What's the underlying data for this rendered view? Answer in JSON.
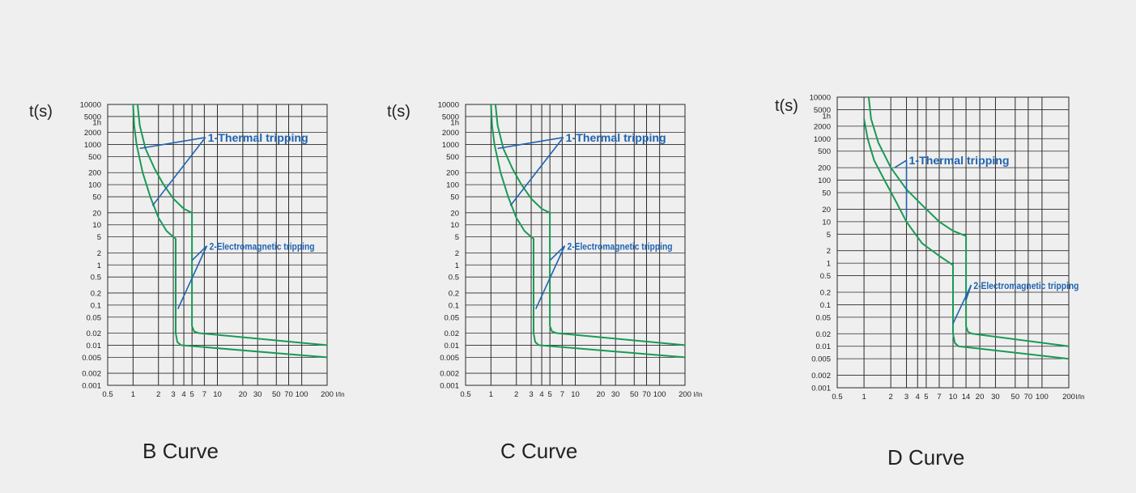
{
  "styles": {
    "background": "#efefef",
    "grid_color": "#2a2a2a",
    "curve_color": "#1a9a55",
    "annotation_color": "#1f63b0",
    "text_color": "#222222"
  },
  "chart_data": [
    {
      "type": "line",
      "title": "B  Curve",
      "ylabel": "t(s)",
      "xlabel": "I/In",
      "x_scale": "log",
      "y_scale": "log",
      "xlim": [
        0.5,
        200
      ],
      "ylim": [
        0.001,
        10000
      ],
      "x_grid": [
        0.5,
        1,
        2,
        3,
        4,
        5,
        7,
        10,
        20,
        30,
        50,
        70,
        100,
        200
      ],
      "x_tick_labels": [
        {
          "label": "0.5",
          "x": 0.5
        },
        {
          "label": "1",
          "x": 1
        },
        {
          "label": "2",
          "x": 2
        },
        {
          "label": "3",
          "x": 3
        },
        {
          "label": "4",
          "x": 4
        },
        {
          "label": "5",
          "x": 5
        },
        {
          "label": "7",
          "x": 7
        },
        {
          "label": "10",
          "x": 10
        },
        {
          "label": "20",
          "x": 20
        },
        {
          "label": "30",
          "x": 30
        },
        {
          "label": "50",
          "x": 50
        },
        {
          "label": "70",
          "x": 70
        },
        {
          "label": "100",
          "x": 100
        },
        {
          "label": "200",
          "x": 200
        }
      ],
      "y_ticks": [
        {
          "label": "10000",
          "y": 10000
        },
        {
          "label": "5000",
          "y": 5000
        },
        {
          "label": "1h",
          "y": 3600
        },
        {
          "label": "2000",
          "y": 2000
        },
        {
          "label": "1000",
          "y": 1000
        },
        {
          "label": "500",
          "y": 500
        },
        {
          "label": "200",
          "y": 200
        },
        {
          "label": "100",
          "y": 100
        },
        {
          "label": "50",
          "y": 50
        },
        {
          "label": "20",
          "y": 20
        },
        {
          "label": "10",
          "y": 10
        },
        {
          "label": "5",
          "y": 5
        },
        {
          "label": "2",
          "y": 2
        },
        {
          "label": "1",
          "y": 1
        },
        {
          "label": "0.5",
          "y": 0.5
        },
        {
          "label": "0.2",
          "y": 0.2
        },
        {
          "label": "0.1",
          "y": 0.1
        },
        {
          "label": "0.05",
          "y": 0.05
        },
        {
          "label": "0.02",
          "y": 0.02
        },
        {
          "label": "0.01",
          "y": 0.01
        },
        {
          "label": "0.005",
          "y": 0.005
        },
        {
          "label": "0.002",
          "y": 0.002
        },
        {
          "label": "0.001",
          "y": 0.001
        }
      ],
      "series": [
        {
          "values": [
            [
              1.0,
              10000
            ],
            [
              1.03,
              3000
            ],
            [
              1.1,
              1000
            ],
            [
              1.3,
              200
            ],
            [
              1.6,
              50
            ],
            [
              2.0,
              15
            ],
            [
              2.5,
              7
            ],
            [
              3.0,
              5
            ],
            [
              3.2,
              4.5
            ],
            [
              3.2,
              0.02
            ],
            [
              3.35,
              0.012
            ],
            [
              3.7,
              0.01
            ],
            [
              200,
              0.005
            ]
          ]
        },
        {
          "values": [
            [
              1.13,
              10000
            ],
            [
              1.2,
              3000
            ],
            [
              1.4,
              800
            ],
            [
              1.8,
              250
            ],
            [
              2.3,
              100
            ],
            [
              3.0,
              45
            ],
            [
              4.0,
              25
            ],
            [
              5.0,
              20
            ],
            [
              5.0,
              0.03
            ],
            [
              5.3,
              0.022
            ],
            [
              6.0,
              0.02
            ],
            [
              200,
              0.01
            ]
          ]
        }
      ],
      "annotations": [
        {
          "text": "1-Thermal tripping",
          "anchor": [
            7.2,
            1500
          ],
          "arrow_targets": [
            [
              1.2,
              800
            ],
            [
              1.7,
              30
            ]
          ]
        },
        {
          "text": "2-Electromagnetic tripping",
          "anchor": [
            7.5,
            3
          ],
          "arrow_targets": [
            [
              5.0,
              1.3
            ],
            [
              3.4,
              0.08
            ]
          ]
        }
      ]
    },
    {
      "type": "line",
      "title": "C  Curve",
      "ylabel": "t(s)",
      "xlabel": "I/In",
      "x_scale": "log",
      "y_scale": "log",
      "xlim": [
        0.5,
        200
      ],
      "ylim": [
        0.001,
        10000
      ],
      "x_grid": [
        0.5,
        1,
        2,
        3,
        4,
        5,
        7,
        10,
        20,
        30,
        50,
        70,
        100,
        200
      ],
      "x_tick_labels": [
        {
          "label": "0.5",
          "x": 0.5
        },
        {
          "label": "1",
          "x": 1
        },
        {
          "label": "2",
          "x": 2
        },
        {
          "label": "3",
          "x": 3
        },
        {
          "label": "4",
          "x": 4
        },
        {
          "label": "5",
          "x": 5
        },
        {
          "label": "7",
          "x": 7
        },
        {
          "label": "10",
          "x": 10
        },
        {
          "label": "20",
          "x": 20
        },
        {
          "label": "30",
          "x": 30
        },
        {
          "label": "50",
          "x": 50
        },
        {
          "label": "70",
          "x": 70
        },
        {
          "label": "100",
          "x": 100
        },
        {
          "label": "200",
          "x": 200
        }
      ],
      "y_ticks": [
        {
          "label": "10000",
          "y": 10000
        },
        {
          "label": "5000",
          "y": 5000
        },
        {
          "label": "1h",
          "y": 3600
        },
        {
          "label": "2000",
          "y": 2000
        },
        {
          "label": "1000",
          "y": 1000
        },
        {
          "label": "500",
          "y": 500
        },
        {
          "label": "200",
          "y": 200
        },
        {
          "label": "100",
          "y": 100
        },
        {
          "label": "50",
          "y": 50
        },
        {
          "label": "20",
          "y": 20
        },
        {
          "label": "10",
          "y": 10
        },
        {
          "label": "5",
          "y": 5
        },
        {
          "label": "2",
          "y": 2
        },
        {
          "label": "1",
          "y": 1
        },
        {
          "label": "0.5",
          "y": 0.5
        },
        {
          "label": "0.2",
          "y": 0.2
        },
        {
          "label": "0.1",
          "y": 0.1
        },
        {
          "label": "0.05",
          "y": 0.05
        },
        {
          "label": "0.02",
          "y": 0.02
        },
        {
          "label": "0.01",
          "y": 0.01
        },
        {
          "label": "0.005",
          "y": 0.005
        },
        {
          "label": "0.002",
          "y": 0.002
        },
        {
          "label": "0.001",
          "y": 0.001
        }
      ],
      "series": [
        {
          "values": [
            [
              1.0,
              10000
            ],
            [
              1.03,
              3000
            ],
            [
              1.1,
              1000
            ],
            [
              1.3,
              200
            ],
            [
              1.6,
              50
            ],
            [
              2.0,
              15
            ],
            [
              2.5,
              7
            ],
            [
              3.0,
              5
            ],
            [
              3.2,
              4.5
            ],
            [
              3.2,
              0.02
            ],
            [
              3.35,
              0.012
            ],
            [
              3.7,
              0.01
            ],
            [
              200,
              0.005
            ]
          ]
        },
        {
          "values": [
            [
              1.13,
              10000
            ],
            [
              1.2,
              3000
            ],
            [
              1.4,
              800
            ],
            [
              1.8,
              250
            ],
            [
              2.3,
              100
            ],
            [
              3.0,
              45
            ],
            [
              4.0,
              25
            ],
            [
              5.0,
              20
            ],
            [
              5.0,
              0.03
            ],
            [
              5.3,
              0.022
            ],
            [
              6.0,
              0.02
            ],
            [
              200,
              0.01
            ]
          ]
        }
      ],
      "annotations": [
        {
          "text": "1-Thermal tripping",
          "anchor": [
            7.2,
            1500
          ],
          "arrow_targets": [
            [
              1.2,
              800
            ],
            [
              1.7,
              30
            ]
          ]
        },
        {
          "text": "2-Electromagnetic tripping",
          "anchor": [
            7.5,
            3
          ],
          "arrow_targets": [
            [
              5.0,
              1.3
            ],
            [
              3.4,
              0.08
            ]
          ]
        }
      ]
    },
    {
      "type": "line",
      "title": "D  Curve",
      "ylabel": "t(s)",
      "xlabel": "I/In",
      "x_scale": "log",
      "y_scale": "log",
      "xlim": [
        0.5,
        200
      ],
      "ylim": [
        0.001,
        10000
      ],
      "x_grid": [
        0.5,
        1,
        2,
        3,
        4,
        5,
        7,
        10,
        14,
        20,
        30,
        50,
        70,
        100,
        200
      ],
      "x_tick_labels": [
        {
          "label": "0.5",
          "x": 0.5
        },
        {
          "label": "1",
          "x": 1
        },
        {
          "label": "2",
          "x": 2
        },
        {
          "label": "3",
          "x": 3
        },
        {
          "label": "4",
          "x": 4
        },
        {
          "label": "5",
          "x": 5
        },
        {
          "label": "7",
          "x": 7
        },
        {
          "label": "10",
          "x": 10
        },
        {
          "label": "14",
          "x": 14
        },
        {
          "label": "20",
          "x": 20
        },
        {
          "label": "30",
          "x": 30
        },
        {
          "label": "50",
          "x": 50
        },
        {
          "label": "70",
          "x": 70
        },
        {
          "label": "100",
          "x": 100
        },
        {
          "label": "200",
          "x": 200
        }
      ],
      "y_ticks": [
        {
          "label": "10000",
          "y": 10000
        },
        {
          "label": "5000",
          "y": 5000
        },
        {
          "label": "1h",
          "y": 3600
        },
        {
          "label": "2000",
          "y": 2000
        },
        {
          "label": "1000",
          "y": 1000
        },
        {
          "label": "500",
          "y": 500
        },
        {
          "label": "200",
          "y": 200
        },
        {
          "label": "100",
          "y": 100
        },
        {
          "label": "50",
          "y": 50
        },
        {
          "label": "20",
          "y": 20
        },
        {
          "label": "10",
          "y": 10
        },
        {
          "label": "5",
          "y": 5
        },
        {
          "label": "2",
          "y": 2
        },
        {
          "label": "1",
          "y": 1
        },
        {
          "label": "0.5",
          "y": 0.5
        },
        {
          "label": "0.2",
          "y": 0.2
        },
        {
          "label": "0.1",
          "y": 0.1
        },
        {
          "label": "0.05",
          "y": 0.05
        },
        {
          "label": "0.02",
          "y": 0.02
        },
        {
          "label": "0.01",
          "y": 0.01
        },
        {
          "label": "0.005",
          "y": 0.005
        },
        {
          "label": "0.002",
          "y": 0.002
        },
        {
          "label": "0.001",
          "y": 0.001
        }
      ],
      "series": [
        {
          "values": [
            [
              1.0,
              3000
            ],
            [
              1.1,
              1000
            ],
            [
              1.3,
              300
            ],
            [
              1.7,
              100
            ],
            [
              2.3,
              30
            ],
            [
              3.0,
              10
            ],
            [
              4.5,
              3
            ],
            [
              7.0,
              1.5
            ],
            [
              10,
              0.9
            ],
            [
              10,
              0.02
            ],
            [
              10.5,
              0.012
            ],
            [
              11.5,
              0.01
            ],
            [
              200,
              0.005
            ]
          ]
        },
        {
          "values": [
            [
              1.13,
              10000
            ],
            [
              1.2,
              3000
            ],
            [
              1.45,
              800
            ],
            [
              2.0,
              200
            ],
            [
              3.0,
              60
            ],
            [
              4.5,
              25
            ],
            [
              7.0,
              10
            ],
            [
              10,
              6
            ],
            [
              14,
              4.5
            ],
            [
              14,
              0.03
            ],
            [
              14.8,
              0.022
            ],
            [
              16.5,
              0.02
            ],
            [
              200,
              0.01
            ]
          ]
        }
      ],
      "annotations": [
        {
          "text": "1-Thermal tripping",
          "anchor": [
            3.0,
            300
          ],
          "arrow_targets": [
            [
              2.2,
              200
            ],
            [
              3.0,
              13
            ]
          ]
        },
        {
          "text": "2-Electromagnetic tripping",
          "anchor": [
            16,
            0.3
          ],
          "arrow_targets": [
            [
              14,
              0.13
            ],
            [
              10,
              0.035
            ]
          ]
        }
      ]
    }
  ]
}
